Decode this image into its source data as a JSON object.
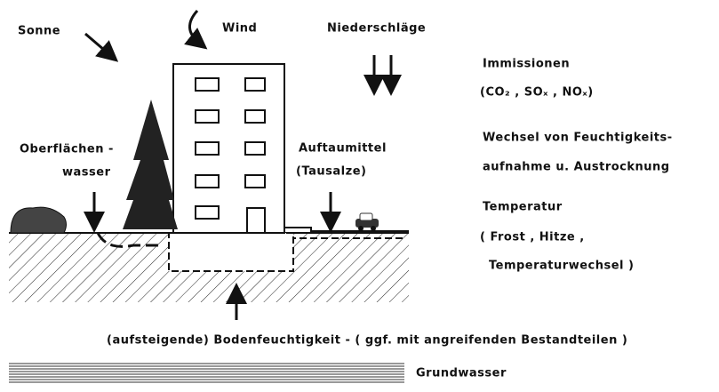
{
  "labels": {
    "sun": "Sonne",
    "wind": "Wind",
    "precipitation": "Niederschläge",
    "immissions": "Immissionen",
    "immissions_detail": "(CO₂ , SOₓ , NOₓ)",
    "moisture_change": [
      "Wechsel von Feuchtigkeits-",
      "aufnahme u. Austrocknung"
    ],
    "temperature": "Temperatur",
    "temperature_detail": [
      "( Frost , Hitze ,",
      "Temperaturwechsel )"
    ],
    "surface_water": [
      "Oberflächen -",
      "wasser"
    ],
    "deicer": [
      "Auftaumittel",
      "(Tausalze)"
    ],
    "soil_moisture": "(aufsteigende) Bodenfeuchtigkeit - ( ggf. mit angreifenden Bestandteilen )",
    "groundwater": "Grundwasser"
  }
}
